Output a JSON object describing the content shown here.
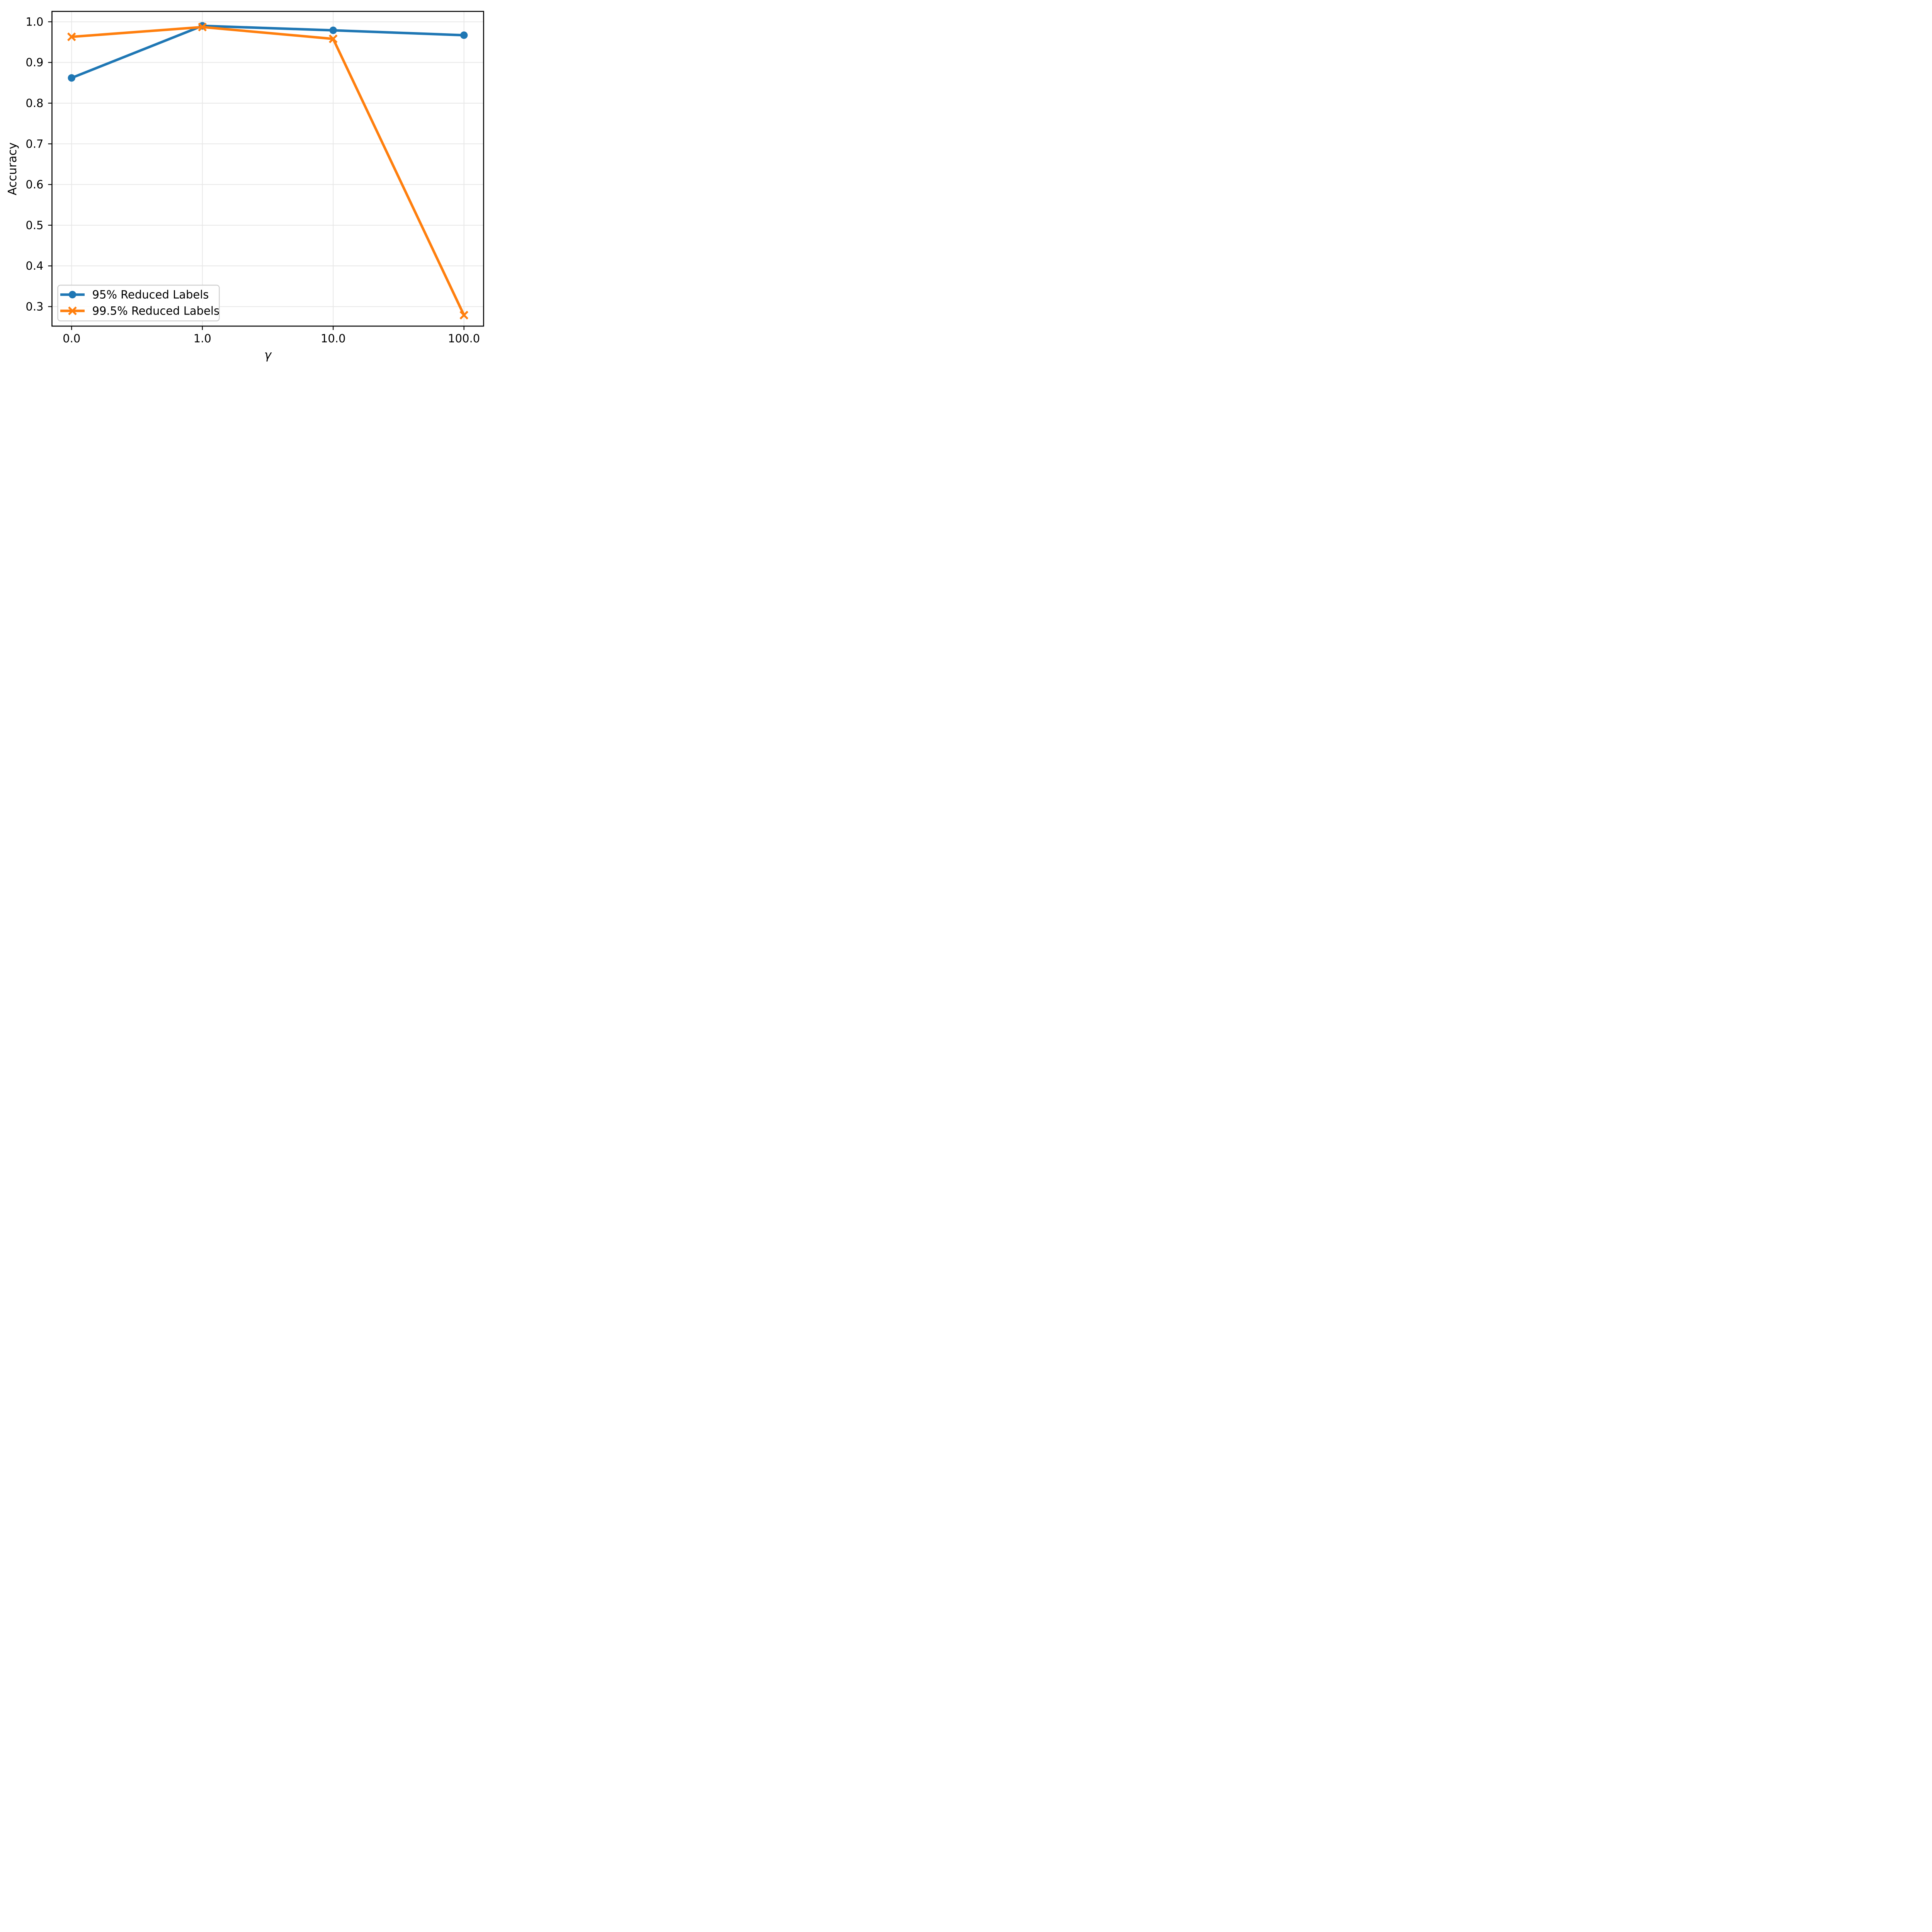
{
  "figure": {
    "background": "#ffffff"
  },
  "chart_data": {
    "type": "line",
    "title": "",
    "xlabel": "γ",
    "ylabel": "Accuracy",
    "categories": [
      "0.0",
      "1.0",
      "10.0",
      "100.0"
    ],
    "x_positions": [
      0,
      1,
      2,
      3
    ],
    "xlim": [
      -0.15,
      3.15
    ],
    "ylim": [
      0.252,
      1.0255
    ],
    "y_ticks": [
      1.0,
      0.9,
      0.8,
      0.7,
      0.6,
      0.5,
      0.4,
      0.3
    ],
    "y_tick_labels": [
      "1.0",
      "0.9",
      "0.8",
      "0.7",
      "0.6",
      "0.5",
      "0.4",
      "0.3"
    ],
    "grid": true,
    "legend_position": "lower left",
    "series": [
      {
        "name": "95% Reduced Labels",
        "marker": "circle",
        "color": "#1f77b4",
        "values": [
          0.862,
          0.99,
          0.979,
          0.967
        ]
      },
      {
        "name": "99.5% Reduced Labels",
        "marker": "x",
        "color": "#ff7f0e",
        "values": [
          0.963,
          0.987,
          0.958,
          0.279
        ]
      }
    ],
    "colors": {
      "grid": "#e7e7e7",
      "spine": "#000000",
      "text": "#000000",
      "legend_border": "#cccccc",
      "legend_background": "#ffffff"
    }
  }
}
